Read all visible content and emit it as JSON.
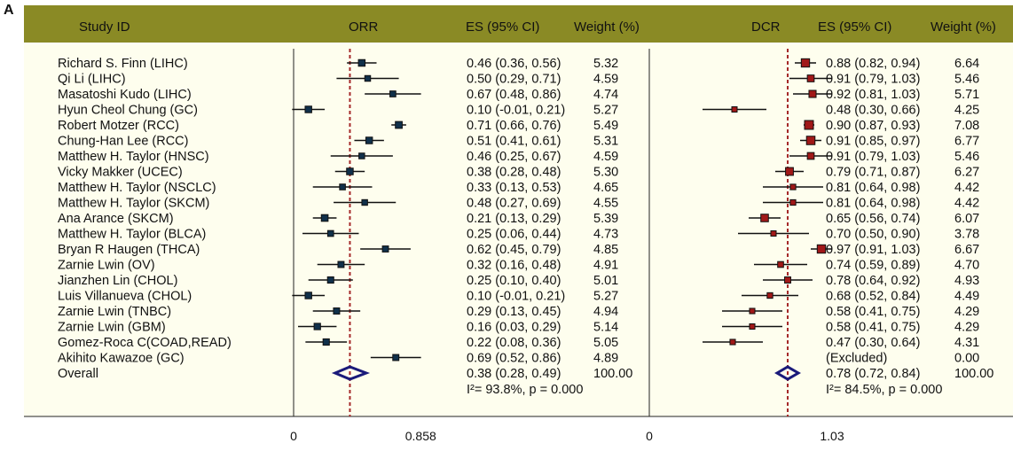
{
  "panel_label": "A",
  "header": {
    "study_id": "Study ID",
    "orr": "ORR",
    "es_ci": "ES (95% CI)",
    "weight": "Weight (%)",
    "dcr": "DCR",
    "es_ci_2": "ES (95% CI)",
    "weight_2": "Weight (%)"
  },
  "colors": {
    "header_bg": "#8a8a25",
    "panel_bg": "#fefeee",
    "orr_marker": "#10304a",
    "dcr_marker": "#a01818",
    "diamond": "#1a1a7a",
    "ref_line": "#a52a2a"
  },
  "chart_data": [
    {
      "type": "forest",
      "measure": "ORR",
      "axis_ticks": [
        "0",
        "0.858"
      ],
      "tick_values": [
        0,
        0.858
      ],
      "reference_line": 0.38,
      "studies": [
        {
          "label": "Richard S. Finn (LIHC)",
          "es": 0.46,
          "lo": 0.36,
          "hi": 0.56,
          "ci_text": "0.46 (0.36, 0.56)",
          "weight": "5.32"
        },
        {
          "label": "Qi Li (LIHC)",
          "es": 0.5,
          "lo": 0.29,
          "hi": 0.71,
          "ci_text": "0.50 (0.29, 0.71)",
          "weight": "4.59"
        },
        {
          "label": "Masatoshi Kudo (LIHC)",
          "es": 0.67,
          "lo": 0.48,
          "hi": 0.86,
          "ci_text": "0.67 (0.48, 0.86)",
          "weight": "4.74"
        },
        {
          "label": "Hyun Cheol Chung (GC)",
          "es": 0.1,
          "lo": -0.01,
          "hi": 0.21,
          "ci_text": "0.10 (-0.01, 0.21)",
          "weight": "5.27"
        },
        {
          "label": "Robert Motzer (RCC)",
          "es": 0.71,
          "lo": 0.66,
          "hi": 0.76,
          "ci_text": "0.71 (0.66, 0.76)",
          "weight": "5.49"
        },
        {
          "label": "Chung-Han Lee (RCC)",
          "es": 0.51,
          "lo": 0.41,
          "hi": 0.61,
          "ci_text": "0.51 (0.41, 0.61)",
          "weight": "5.31"
        },
        {
          "label": "Matthew H. Taylor (HNSC)",
          "es": 0.46,
          "lo": 0.25,
          "hi": 0.67,
          "ci_text": "0.46 (0.25, 0.67)",
          "weight": "4.59"
        },
        {
          "label": "Vicky Makker (UCEC)",
          "es": 0.38,
          "lo": 0.28,
          "hi": 0.48,
          "ci_text": "0.38 (0.28, 0.48)",
          "weight": "5.30"
        },
        {
          "label": "Matthew H. Taylor (NSCLC)",
          "es": 0.33,
          "lo": 0.13,
          "hi": 0.53,
          "ci_text": "0.33 (0.13, 0.53)",
          "weight": "4.65"
        },
        {
          "label": "Matthew H. Taylor (SKCM)",
          "es": 0.48,
          "lo": 0.27,
          "hi": 0.69,
          "ci_text": "0.48 (0.27, 0.69)",
          "weight": "4.55"
        },
        {
          "label": "Ana Arance (SKCM)",
          "es": 0.21,
          "lo": 0.13,
          "hi": 0.29,
          "ci_text": "0.21 (0.13, 0.29)",
          "weight": "5.39"
        },
        {
          "label": "Matthew H. Taylor (BLCA)",
          "es": 0.25,
          "lo": 0.06,
          "hi": 0.44,
          "ci_text": "0.25 (0.06, 0.44)",
          "weight": "4.73"
        },
        {
          "label": "Bryan R Haugen (THCA)",
          "es": 0.62,
          "lo": 0.45,
          "hi": 0.79,
          "ci_text": "0.62 (0.45, 0.79)",
          "weight": "4.85"
        },
        {
          "label": "Zarnie Lwin (OV)",
          "es": 0.32,
          "lo": 0.16,
          "hi": 0.48,
          "ci_text": "0.32 (0.16, 0.48)",
          "weight": "4.91"
        },
        {
          "label": "Jianzhen Lin (CHOL)",
          "es": 0.25,
          "lo": 0.1,
          "hi": 0.4,
          "ci_text": "0.25 (0.10, 0.40)",
          "weight": "5.01"
        },
        {
          "label": "Luis Villanueva (CHOL)",
          "es": 0.1,
          "lo": -0.01,
          "hi": 0.21,
          "ci_text": "0.10 (-0.01, 0.21)",
          "weight": "5.27"
        },
        {
          "label": "Zarnie Lwin (TNBC)",
          "es": 0.29,
          "lo": 0.13,
          "hi": 0.45,
          "ci_text": "0.29 (0.13, 0.45)",
          "weight": "4.94"
        },
        {
          "label": "Zarnie Lwin (GBM)",
          "es": 0.16,
          "lo": 0.03,
          "hi": 0.29,
          "ci_text": "0.16 (0.03, 0.29)",
          "weight": "5.14"
        },
        {
          "label": "Gomez-Roca C(COAD,READ)",
          "es": 0.22,
          "lo": 0.08,
          "hi": 0.36,
          "ci_text": "0.22 (0.08, 0.36)",
          "weight": "5.05"
        },
        {
          "label": "Akihito Kawazoe (GC)",
          "es": 0.69,
          "lo": 0.52,
          "hi": 0.86,
          "ci_text": "0.69 (0.52, 0.86)",
          "weight": "4.89"
        }
      ],
      "overall": {
        "label": "Overall",
        "es": 0.38,
        "lo": 0.28,
        "hi": 0.49,
        "ci_text": "0.38 (0.28, 0.49)",
        "weight": "100.00"
      },
      "heterogeneity": "I²= 93.8%, p = 0.000"
    },
    {
      "type": "forest",
      "measure": "DCR",
      "axis_ticks": [
        "0",
        "1.03"
      ],
      "tick_values": [
        0,
        1.03
      ],
      "reference_line": 0.78,
      "studies": [
        {
          "es": 0.88,
          "lo": 0.82,
          "hi": 0.94,
          "ci_text": "0.88 (0.82, 0.94)",
          "weight": "6.64"
        },
        {
          "es": 0.91,
          "lo": 0.79,
          "hi": 1.03,
          "ci_text": "0.91 (0.79, 1.03)",
          "weight": "5.46"
        },
        {
          "es": 0.92,
          "lo": 0.81,
          "hi": 1.03,
          "ci_text": "0.92 (0.81, 1.03)",
          "weight": "5.71"
        },
        {
          "es": 0.48,
          "lo": 0.3,
          "hi": 0.66,
          "ci_text": "0.48 (0.30, 0.66)",
          "weight": "4.25"
        },
        {
          "es": 0.9,
          "lo": 0.87,
          "hi": 0.93,
          "ci_text": "0.90 (0.87, 0.93)",
          "weight": "7.08"
        },
        {
          "es": 0.91,
          "lo": 0.85,
          "hi": 0.97,
          "ci_text": "0.91 (0.85, 0.97)",
          "weight": "6.77"
        },
        {
          "es": 0.91,
          "lo": 0.79,
          "hi": 1.03,
          "ci_text": "0.91 (0.79, 1.03)",
          "weight": "5.46"
        },
        {
          "es": 0.79,
          "lo": 0.71,
          "hi": 0.87,
          "ci_text": "0.79 (0.71, 0.87)",
          "weight": "6.27"
        },
        {
          "es": 0.81,
          "lo": 0.64,
          "hi": 0.98,
          "ci_text": "0.81 (0.64, 0.98)",
          "weight": "4.42"
        },
        {
          "es": 0.81,
          "lo": 0.64,
          "hi": 0.98,
          "ci_text": "0.81 (0.64, 0.98)",
          "weight": "4.42"
        },
        {
          "es": 0.65,
          "lo": 0.56,
          "hi": 0.74,
          "ci_text": "0.65 (0.56, 0.74)",
          "weight": "6.07"
        },
        {
          "es": 0.7,
          "lo": 0.5,
          "hi": 0.9,
          "ci_text": "0.70 (0.50, 0.90)",
          "weight": "3.78"
        },
        {
          "es": 0.97,
          "lo": 0.91,
          "hi": 1.03,
          "ci_text": "0.97 (0.91, 1.03)",
          "weight": "6.67"
        },
        {
          "es": 0.74,
          "lo": 0.59,
          "hi": 0.89,
          "ci_text": "0.74 (0.59, 0.89)",
          "weight": "4.70"
        },
        {
          "es": 0.78,
          "lo": 0.64,
          "hi": 0.92,
          "ci_text": "0.78 (0.64, 0.92)",
          "weight": "4.93"
        },
        {
          "es": 0.68,
          "lo": 0.52,
          "hi": 0.84,
          "ci_text": "0.68 (0.52, 0.84)",
          "weight": "4.49"
        },
        {
          "es": 0.58,
          "lo": 0.41,
          "hi": 0.75,
          "ci_text": "0.58 (0.41, 0.75)",
          "weight": "4.29"
        },
        {
          "es": 0.58,
          "lo": 0.41,
          "hi": 0.75,
          "ci_text": "0.58 (0.41, 0.75)",
          "weight": "4.29"
        },
        {
          "es": 0.47,
          "lo": 0.3,
          "hi": 0.64,
          "ci_text": "0.47 (0.30, 0.64)",
          "weight": "4.31"
        },
        {
          "es": null,
          "lo": null,
          "hi": null,
          "ci_text": "(Excluded)",
          "weight": "0.00"
        }
      ],
      "overall": {
        "es": 0.78,
        "lo": 0.72,
        "hi": 0.84,
        "ci_text": "0.78 (0.72, 0.84)",
        "weight": "100.00"
      },
      "heterogeneity": "I²= 84.5%, p = 0.000"
    }
  ]
}
